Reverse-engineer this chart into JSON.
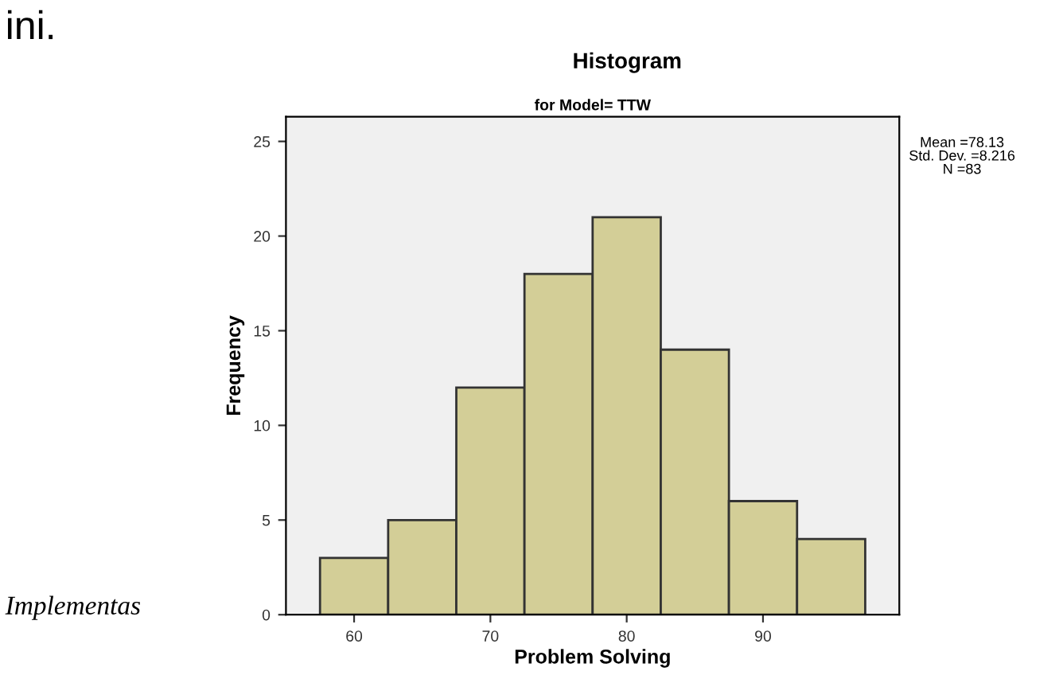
{
  "chart_data": {
    "type": "histogram",
    "title": "Histogram",
    "subtitle": "for Model= TTW",
    "xlabel": "Problem Solving",
    "ylabel": "Frequency",
    "bins": [
      57.5,
      62.5,
      67.5,
      72.5,
      77.5,
      82.5,
      87.5,
      92.5,
      97.5
    ],
    "values": [
      3,
      5,
      12,
      18,
      21,
      14,
      6,
      4
    ],
    "color": "#d3ce97",
    "xlim": [
      55,
      100
    ],
    "xticks": [
      60,
      70,
      80,
      90
    ],
    "ylim": [
      0,
      26.3
    ],
    "yticks": [
      0,
      5,
      10,
      15,
      20,
      25
    ],
    "grid": false,
    "legend": false,
    "annotations": [
      "Mean =78.13\nStd. Dev. =8.216\nN =83",
      "ini.",
      "Implementas"
    ]
  }
}
